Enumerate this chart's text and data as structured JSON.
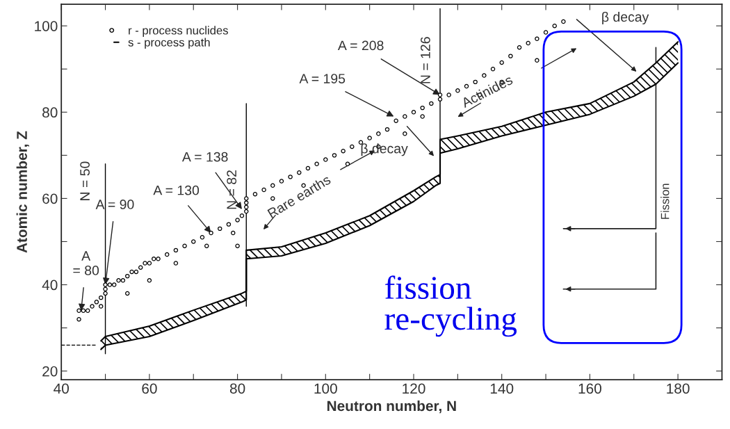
{
  "chart_data": {
    "type": "scatter",
    "xlabel": "Neutron number, N",
    "ylabel": "Atomic number, Z",
    "xlim": [
      40,
      190
    ],
    "ylim": [
      18,
      105
    ],
    "xticks": [
      40,
      {
        "value": 50,
        "label": null
      },
      60,
      {
        "value": 70,
        "label": null
      },
      80,
      {
        "value": 90,
        "label": null
      },
      100,
      {
        "value": 110,
        "label": null
      },
      120,
      {
        "value": 130,
        "label": null
      },
      140,
      {
        "value": 150,
        "label": null
      },
      160,
      {
        "value": 170,
        "label": null
      },
      180
    ],
    "yticks": [
      20,
      {
        "value": 30,
        "label": null
      },
      40,
      {
        "value": 50,
        "label": null
      },
      60,
      {
        "value": 70,
        "label": null
      },
      80,
      {
        "value": 90,
        "label": null
      },
      100
    ],
    "grid": false,
    "legend": "top left",
    "series": [
      {
        "name": "r - process nuclides",
        "color": "#000000",
        "marker": "circle",
        "x": [
          44,
          45,
          46,
          47,
          48,
          49,
          50,
          50,
          50,
          51,
          52,
          53,
          54,
          55,
          56,
          57,
          58,
          59,
          60,
          61,
          62,
          64,
          66,
          68,
          70,
          72,
          74,
          76,
          78,
          80,
          81,
          82,
          82,
          82,
          82,
          84,
          86,
          88,
          90,
          92,
          94,
          96,
          98,
          100,
          102,
          104,
          106,
          108,
          110,
          112,
          114,
          116,
          118,
          120,
          122,
          124,
          126,
          126,
          128,
          130,
          132,
          134,
          136,
          138,
          140,
          142,
          144,
          146,
          148,
          150,
          152,
          154,
          44,
          49,
          55,
          60,
          66,
          73,
          79,
          80,
          88,
          95,
          105,
          112,
          118,
          122,
          135,
          140,
          148
        ],
        "values": [
          34,
          34,
          34,
          35,
          36,
          37,
          38,
          39,
          40,
          40,
          40,
          41,
          41,
          42,
          43,
          43,
          44,
          45,
          45,
          46,
          46,
          47,
          48,
          49,
          50,
          51,
          52,
          53,
          54,
          55,
          56,
          57,
          58,
          59,
          60,
          61,
          62,
          63,
          64,
          65,
          66,
          67,
          68,
          69,
          70,
          71,
          72,
          73,
          74,
          75,
          76,
          78,
          79,
          80,
          81,
          82,
          83,
          84,
          84,
          85,
          86,
          87,
          88.5,
          90,
          91.5,
          93,
          95,
          96,
          97,
          98.5,
          100,
          101,
          32,
          35,
          38,
          41,
          45,
          49,
          52,
          49,
          60,
          63,
          68,
          72,
          75,
          79,
          84,
          87,
          92
        ]
      },
      {
        "type": "line",
        "color": "#000000",
        "line_style": "solid",
        "x": [
          49,
          50,
          60,
          70,
          81,
          82,
          82,
          90,
          100,
          110,
          120,
          125,
          126,
          126,
          130,
          140,
          150,
          160,
          170,
          175,
          180
        ],
        "values": [
          25,
          26,
          28,
          31.7,
          36,
          36.5,
          46,
          46.7,
          49.6,
          53.7,
          59.3,
          63,
          63.5,
          70.5,
          71.5,
          74.5,
          77,
          79.5,
          83.7,
          86.5,
          91.4
        ]
      },
      {
        "type": "line",
        "name": "s - process path",
        "color": "#000000",
        "line_style": "solid",
        "x": [
          49,
          50,
          60,
          70,
          81,
          82,
          82,
          90,
          100,
          110,
          120,
          125,
          126,
          126,
          130,
          140,
          150,
          160,
          170,
          175,
          180
        ],
        "values": [
          27,
          28,
          30.4,
          34.1,
          38,
          38.5,
          48,
          48.8,
          52,
          56,
          61.8,
          65,
          65.5,
          73.7,
          74.5,
          76.7,
          80,
          82,
          87,
          91.4,
          96.3
        ]
      },
      {
        "type": "line",
        "color": "#000000",
        "line_style": "dashed",
        "x": [
          40,
          48
        ],
        "values": [
          26,
          26
        ]
      },
      {
        "type": "line",
        "color": "#000000",
        "line_style": "solid",
        "x": [
          50,
          50
        ],
        "values": [
          24,
          68
        ]
      },
      {
        "type": "line",
        "color": "#000000",
        "line_style": "solid",
        "x": [
          82,
          82
        ],
        "values": [
          35,
          82
        ]
      },
      {
        "type": "line",
        "color": "#000000",
        "line_style": "solid",
        "x": [
          126,
          126
        ],
        "values": [
          68,
          104
        ]
      }
    ],
    "annotations": [
      {
        "text": "A\n= 80",
        "x": 44.5,
        "y": 34
      },
      {
        "text": "A = 90",
        "x": 50,
        "y": 40
      },
      {
        "text": "A = 130",
        "x": 74,
        "y": 52
      },
      {
        "text": "A = 138",
        "x": 81,
        "y": 57.5
      },
      {
        "text": "A = 195",
        "x": 115.5,
        "y": 79
      },
      {
        "text": "A = 208",
        "x": 126,
        "y": 84
      },
      {
        "text": "N = 50",
        "x": 50,
        "y": 64
      },
      {
        "text": "N = 82",
        "x": 82,
        "y": 62
      },
      {
        "text": "N = 126",
        "x": 126,
        "y": 92
      },
      "Rare earths",
      "β decay",
      "Actinides",
      "β decay",
      "Fission",
      "fission\nre-cycling"
    ]
  }
}
